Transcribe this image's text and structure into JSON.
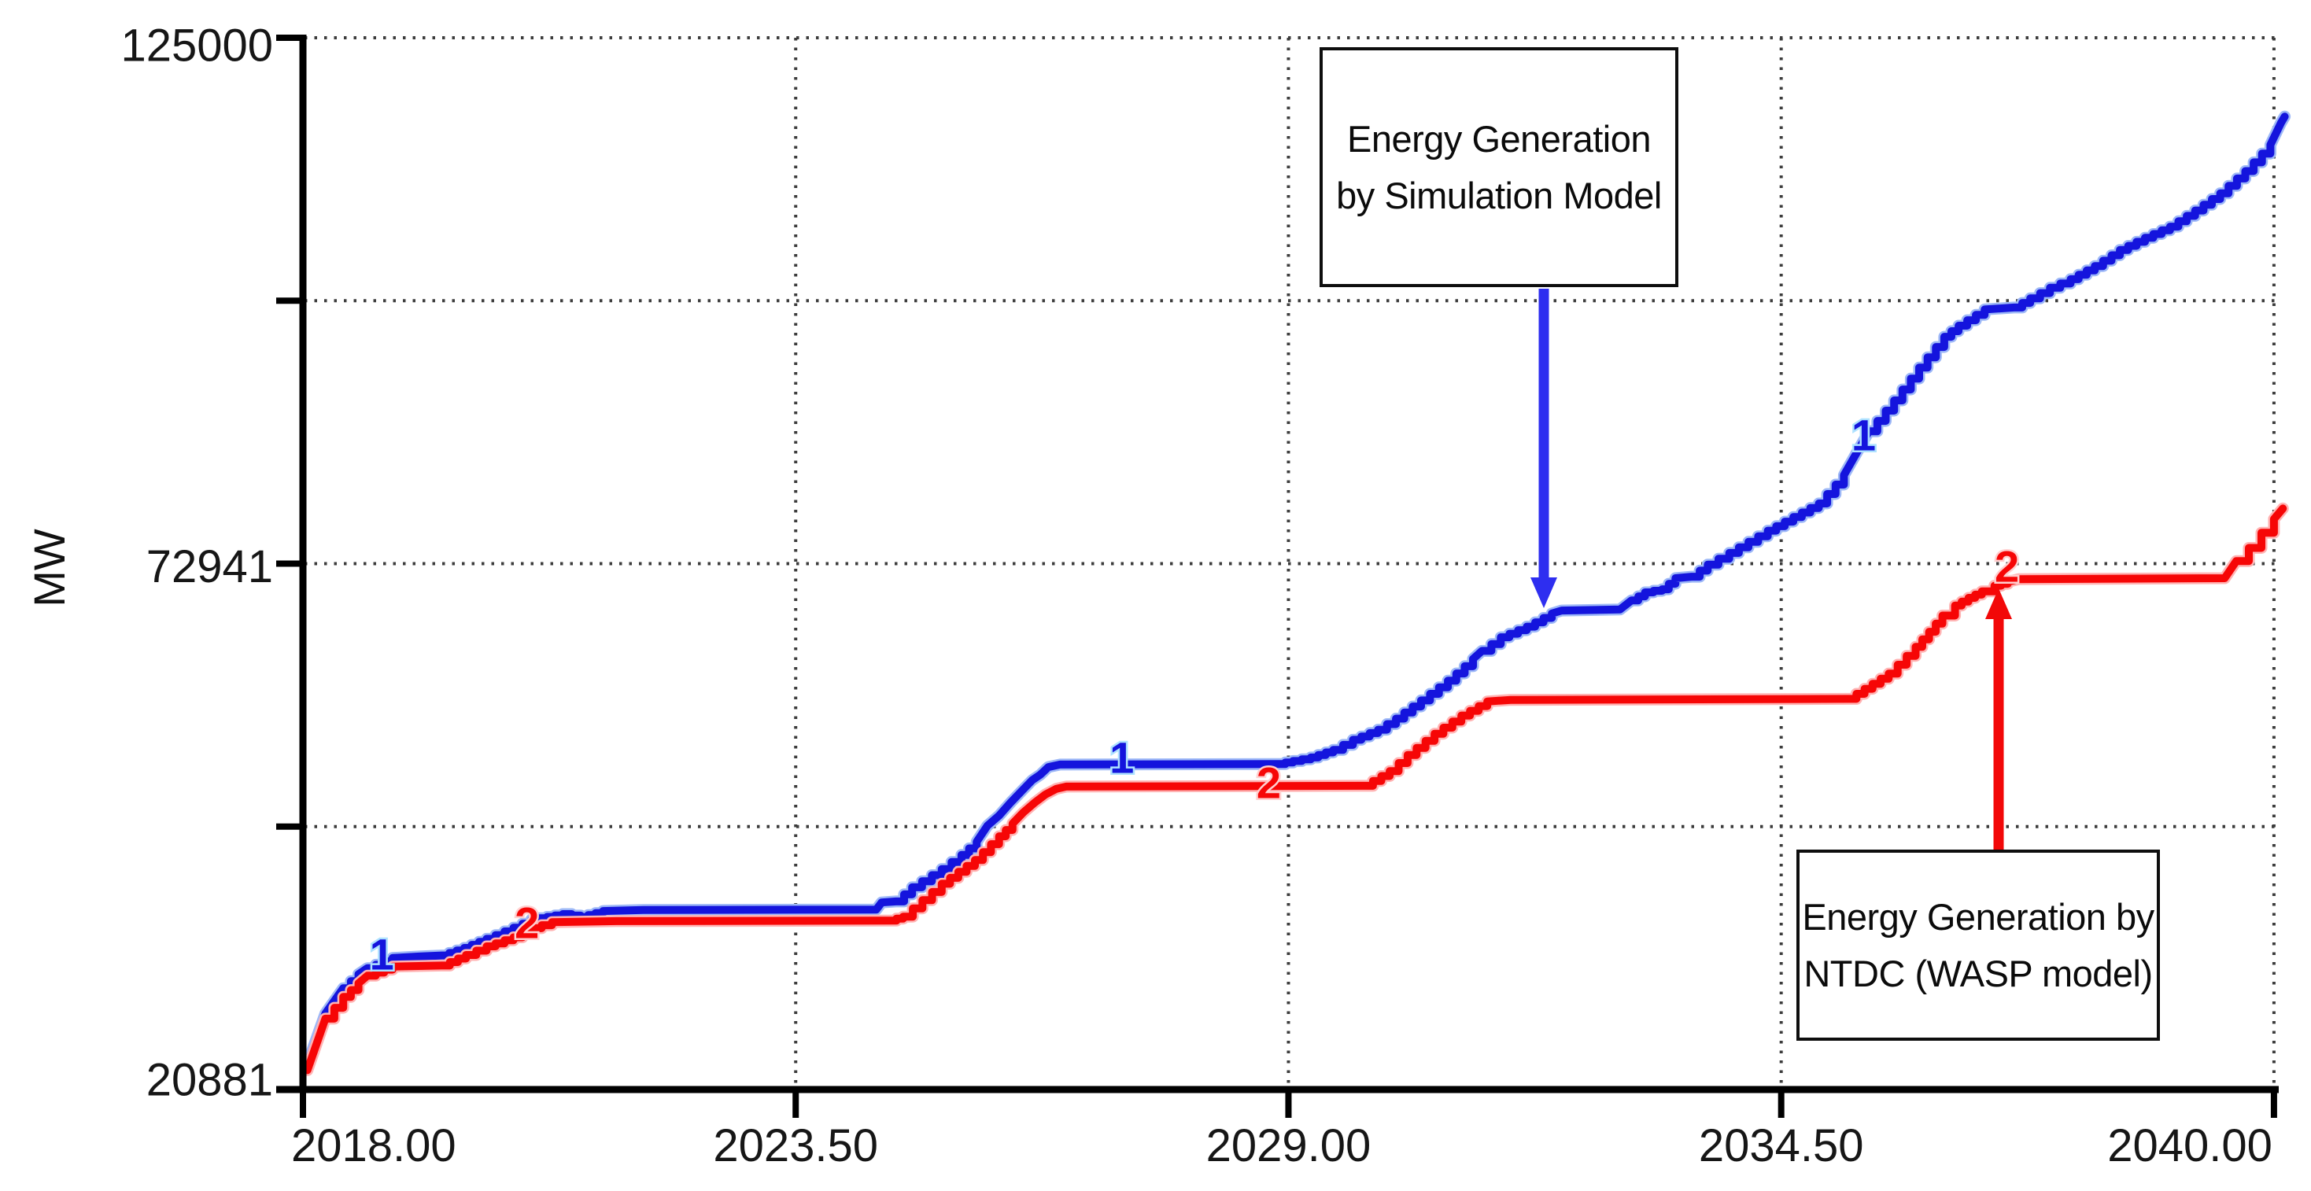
{
  "axis": {
    "y_unit_label": "MW"
  },
  "annotations": {
    "simulation_box": {
      "line1": "Energy Generation",
      "line2": "by Simulation Model",
      "arrow_color": "#2e2ef0"
    },
    "ntdc_box": {
      "line1": "Energy Generation by",
      "line2": "NTDC (WASP model)",
      "arrow_color": "#f20808"
    }
  },
  "colors": {
    "axis": "#000000",
    "grid_dots": "#3c3c3c",
    "tick_text": "#161616"
  },
  "chart_data": {
    "type": "line",
    "title": "",
    "xlabel": "",
    "ylabel": "MW",
    "x_range": [
      2018.0,
      2040.1
    ],
    "y_range": [
      20881,
      125000
    ],
    "grid": "dotted",
    "legend_position": "none",
    "x_ticks": [
      {
        "value": 2018.0,
        "label": "2018.00"
      },
      {
        "value": 2023.5,
        "label": "2023.50"
      },
      {
        "value": 2029.0,
        "label": "2029.00"
      },
      {
        "value": 2034.5,
        "label": "2034.50"
      },
      {
        "value": 2040.0,
        "label": "2040.00"
      }
    ],
    "y_ticks": [
      {
        "value": 125000,
        "label": "125000"
      },
      {
        "value": 98970,
        "label": ""
      },
      {
        "value": 72941,
        "label": "72941"
      },
      {
        "value": 46911,
        "label": ""
      },
      {
        "value": 20881,
        "label": "20881"
      }
    ],
    "series": [
      {
        "id": "simulation",
        "name": "Energy Generation by Simulation Model",
        "curve_number": "1",
        "color": "#1414dd",
        "halo": "#9db8f7",
        "points": [
          [
            2018.05,
            23400
          ],
          [
            2018.25,
            28400
          ],
          [
            2018.45,
            30900
          ],
          [
            2018.62,
            32300
          ],
          [
            2018.72,
            32900
          ],
          [
            2019.0,
            33900
          ],
          [
            2019.3,
            34050
          ],
          [
            2019.55,
            34150
          ],
          [
            2019.8,
            34900
          ],
          [
            2020.05,
            35800
          ],
          [
            2020.35,
            36900
          ],
          [
            2020.55,
            37700
          ],
          [
            2020.9,
            38250
          ],
          [
            2021.1,
            37950
          ],
          [
            2021.35,
            38550
          ],
          [
            2021.8,
            38650
          ],
          [
            2024.4,
            38700
          ],
          [
            2024.46,
            39400
          ],
          [
            2024.62,
            39500
          ],
          [
            2024.8,
            40900
          ],
          [
            2025.13,
            42700
          ],
          [
            2025.35,
            44100
          ],
          [
            2025.52,
            45400
          ],
          [
            2025.64,
            47000
          ],
          [
            2025.77,
            48000
          ],
          [
            2025.9,
            49300
          ],
          [
            2026.03,
            50500
          ],
          [
            2026.14,
            51500
          ],
          [
            2026.23,
            52050
          ],
          [
            2026.32,
            52800
          ],
          [
            2026.45,
            53050
          ],
          [
            2028.88,
            53100
          ],
          [
            2029.05,
            53400
          ],
          [
            2029.25,
            53750
          ],
          [
            2029.5,
            54500
          ],
          [
            2029.72,
            55500
          ],
          [
            2030.0,
            56500
          ],
          [
            2030.2,
            57600
          ],
          [
            2030.48,
            59400
          ],
          [
            2030.78,
            61350
          ],
          [
            2031.06,
            63500
          ],
          [
            2031.16,
            64300
          ],
          [
            2031.37,
            65650
          ],
          [
            2031.66,
            66700
          ],
          [
            2031.94,
            68000
          ],
          [
            2032.05,
            68300
          ],
          [
            2032.7,
            68400
          ],
          [
            2032.83,
            69300
          ],
          [
            2032.98,
            70100
          ],
          [
            2033.17,
            70400
          ],
          [
            2033.32,
            71500
          ],
          [
            2033.5,
            71650
          ],
          [
            2033.68,
            72850
          ],
          [
            2033.92,
            74000
          ],
          [
            2034.35,
            76200
          ],
          [
            2034.92,
            78900
          ],
          [
            2035.2,
            81700
          ],
          [
            2035.48,
            86050
          ],
          [
            2035.76,
            89100
          ],
          [
            2036.04,
            92350
          ],
          [
            2036.32,
            95400
          ],
          [
            2036.48,
            96500
          ],
          [
            2036.77,
            98100
          ],
          [
            2037.1,
            98300
          ],
          [
            2037.28,
            99200
          ],
          [
            2037.5,
            100250
          ],
          [
            2037.73,
            101100
          ],
          [
            2038.0,
            102400
          ],
          [
            2038.28,
            104000
          ],
          [
            2038.56,
            105200
          ],
          [
            2038.84,
            106300
          ],
          [
            2039.12,
            107900
          ],
          [
            2039.4,
            109600
          ],
          [
            2039.68,
            111800
          ],
          [
            2039.96,
            114400
          ],
          [
            2040.08,
            116600
          ],
          [
            2040.12,
            117200
          ]
        ]
      },
      {
        "id": "ntdc",
        "name": "Energy Generation by NTDC (WASP model)",
        "curve_number": "2",
        "color": "#f60606",
        "halo": "#ffb3b3",
        "points": [
          [
            2018.05,
            22800
          ],
          [
            2018.25,
            27900
          ],
          [
            2018.45,
            30050
          ],
          [
            2018.62,
            31400
          ],
          [
            2018.72,
            32150
          ],
          [
            2019.0,
            33050
          ],
          [
            2019.55,
            33150
          ],
          [
            2019.82,
            34200
          ],
          [
            2020.05,
            35050
          ],
          [
            2020.35,
            35950
          ],
          [
            2020.55,
            36850
          ],
          [
            2020.78,
            37450
          ],
          [
            2021.5,
            37550
          ],
          [
            2024.55,
            37600
          ],
          [
            2024.7,
            38000
          ],
          [
            2025.13,
            41250
          ],
          [
            2025.5,
            43600
          ],
          [
            2025.77,
            45950
          ],
          [
            2025.92,
            47200
          ],
          [
            2026.04,
            48300
          ],
          [
            2026.17,
            49300
          ],
          [
            2026.29,
            50100
          ],
          [
            2026.41,
            50650
          ],
          [
            2026.52,
            50870
          ],
          [
            2029.85,
            50950
          ],
          [
            2030.13,
            52400
          ],
          [
            2030.33,
            54000
          ],
          [
            2030.63,
            56100
          ],
          [
            2030.93,
            57900
          ],
          [
            2031.22,
            59300
          ],
          [
            2031.48,
            59450
          ],
          [
            2035.25,
            59550
          ],
          [
            2035.7,
            62050
          ],
          [
            2036.0,
            64700
          ],
          [
            2036.15,
            66200
          ],
          [
            2036.3,
            67800
          ],
          [
            2036.44,
            68800
          ],
          [
            2036.59,
            69550
          ],
          [
            2036.74,
            70200
          ],
          [
            2036.88,
            70750
          ],
          [
            2037.03,
            71150
          ],
          [
            2037.15,
            71400
          ],
          [
            2039.45,
            71500
          ],
          [
            2039.58,
            73200
          ],
          [
            2039.72,
            74500
          ],
          [
            2039.86,
            76000
          ],
          [
            2040.0,
            77350
          ],
          [
            2040.1,
            78400
          ]
        ]
      }
    ],
    "curve_number_labels": [
      {
        "series": "simulation",
        "text": "1",
        "year": 2018.88,
        "mw": 34270,
        "color": "#1414dd",
        "halo": "#aee2ff"
      },
      {
        "series": "simulation",
        "text": "1",
        "year": 2027.14,
        "mw": 53740,
        "color": "#1414dd",
        "halo": "#aee2ff"
      },
      {
        "series": "simulation",
        "text": "1",
        "year": 2035.42,
        "mw": 85670,
        "color": "#1414dd",
        "halo": "#aee2ff"
      },
      {
        "series": "ntdc",
        "text": "2",
        "year": 2020.5,
        "mw": 37380,
        "color": "#f60606",
        "halo": "#ffd0d0"
      },
      {
        "series": "ntdc",
        "text": "2",
        "year": 2028.78,
        "mw": 51250,
        "color": "#f60606",
        "halo": "#ffd0d0"
      },
      {
        "series": "ntdc",
        "text": "2",
        "year": 2037.02,
        "mw": 72660,
        "color": "#f60606",
        "halo": "#ffd0d0"
      }
    ]
  }
}
